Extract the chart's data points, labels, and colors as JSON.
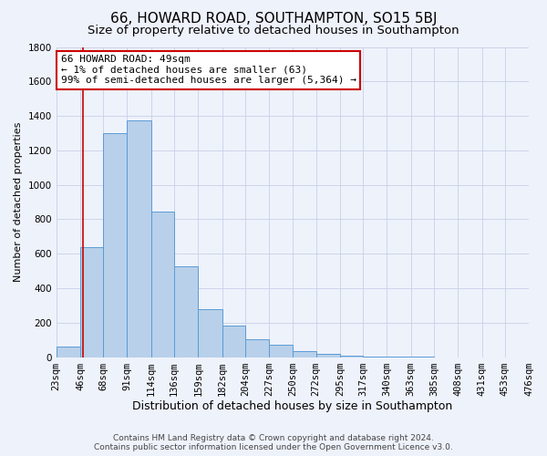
{
  "title": "66, HOWARD ROAD, SOUTHAMPTON, SO15 5BJ",
  "subtitle": "Size of property relative to detached houses in Southampton",
  "xlabel": "Distribution of detached houses by size in Southampton",
  "ylabel": "Number of detached properties",
  "bar_values": [
    60,
    640,
    1300,
    1375,
    845,
    525,
    280,
    185,
    105,
    70,
    35,
    20,
    8,
    3,
    2,
    1,
    0,
    0,
    0,
    0
  ],
  "bar_labels": [
    "23sqm",
    "46sqm",
    "68sqm",
    "91sqm",
    "114sqm",
    "136sqm",
    "159sqm",
    "182sqm",
    "204sqm",
    "227sqm",
    "250sqm",
    "272sqm",
    "295sqm",
    "317sqm",
    "340sqm",
    "363sqm",
    "385sqm",
    "408sqm",
    "431sqm",
    "453sqm",
    "476sqm"
  ],
  "bin_edges": [
    23,
    46,
    68,
    91,
    114,
    136,
    159,
    182,
    204,
    227,
    250,
    272,
    295,
    317,
    340,
    363,
    385,
    408,
    431,
    453,
    476
  ],
  "bar_color": "#b8d0ea",
  "bar_edgecolor": "#5b9bd5",
  "vline_x": 49,
  "vline_color": "#cc0000",
  "ylim": [
    0,
    1800
  ],
  "yticks": [
    0,
    200,
    400,
    600,
    800,
    1000,
    1200,
    1400,
    1600,
    1800
  ],
  "annotation_title": "66 HOWARD ROAD: 49sqm",
  "annotation_line1": "← 1% of detached houses are smaller (63)",
  "annotation_line2": "99% of semi-detached houses are larger (5,364) →",
  "footer1": "Contains HM Land Registry data © Crown copyright and database right 2024.",
  "footer2": "Contains public sector information licensed under the Open Government Licence v3.0.",
  "background_color": "#eef2fb",
  "grid_color": "#c8d0e8",
  "title_fontsize": 11,
  "subtitle_fontsize": 9.5,
  "xlabel_fontsize": 9,
  "ylabel_fontsize": 8,
  "tick_fontsize": 7.5,
  "annotation_fontsize": 8,
  "footer_fontsize": 6.5
}
